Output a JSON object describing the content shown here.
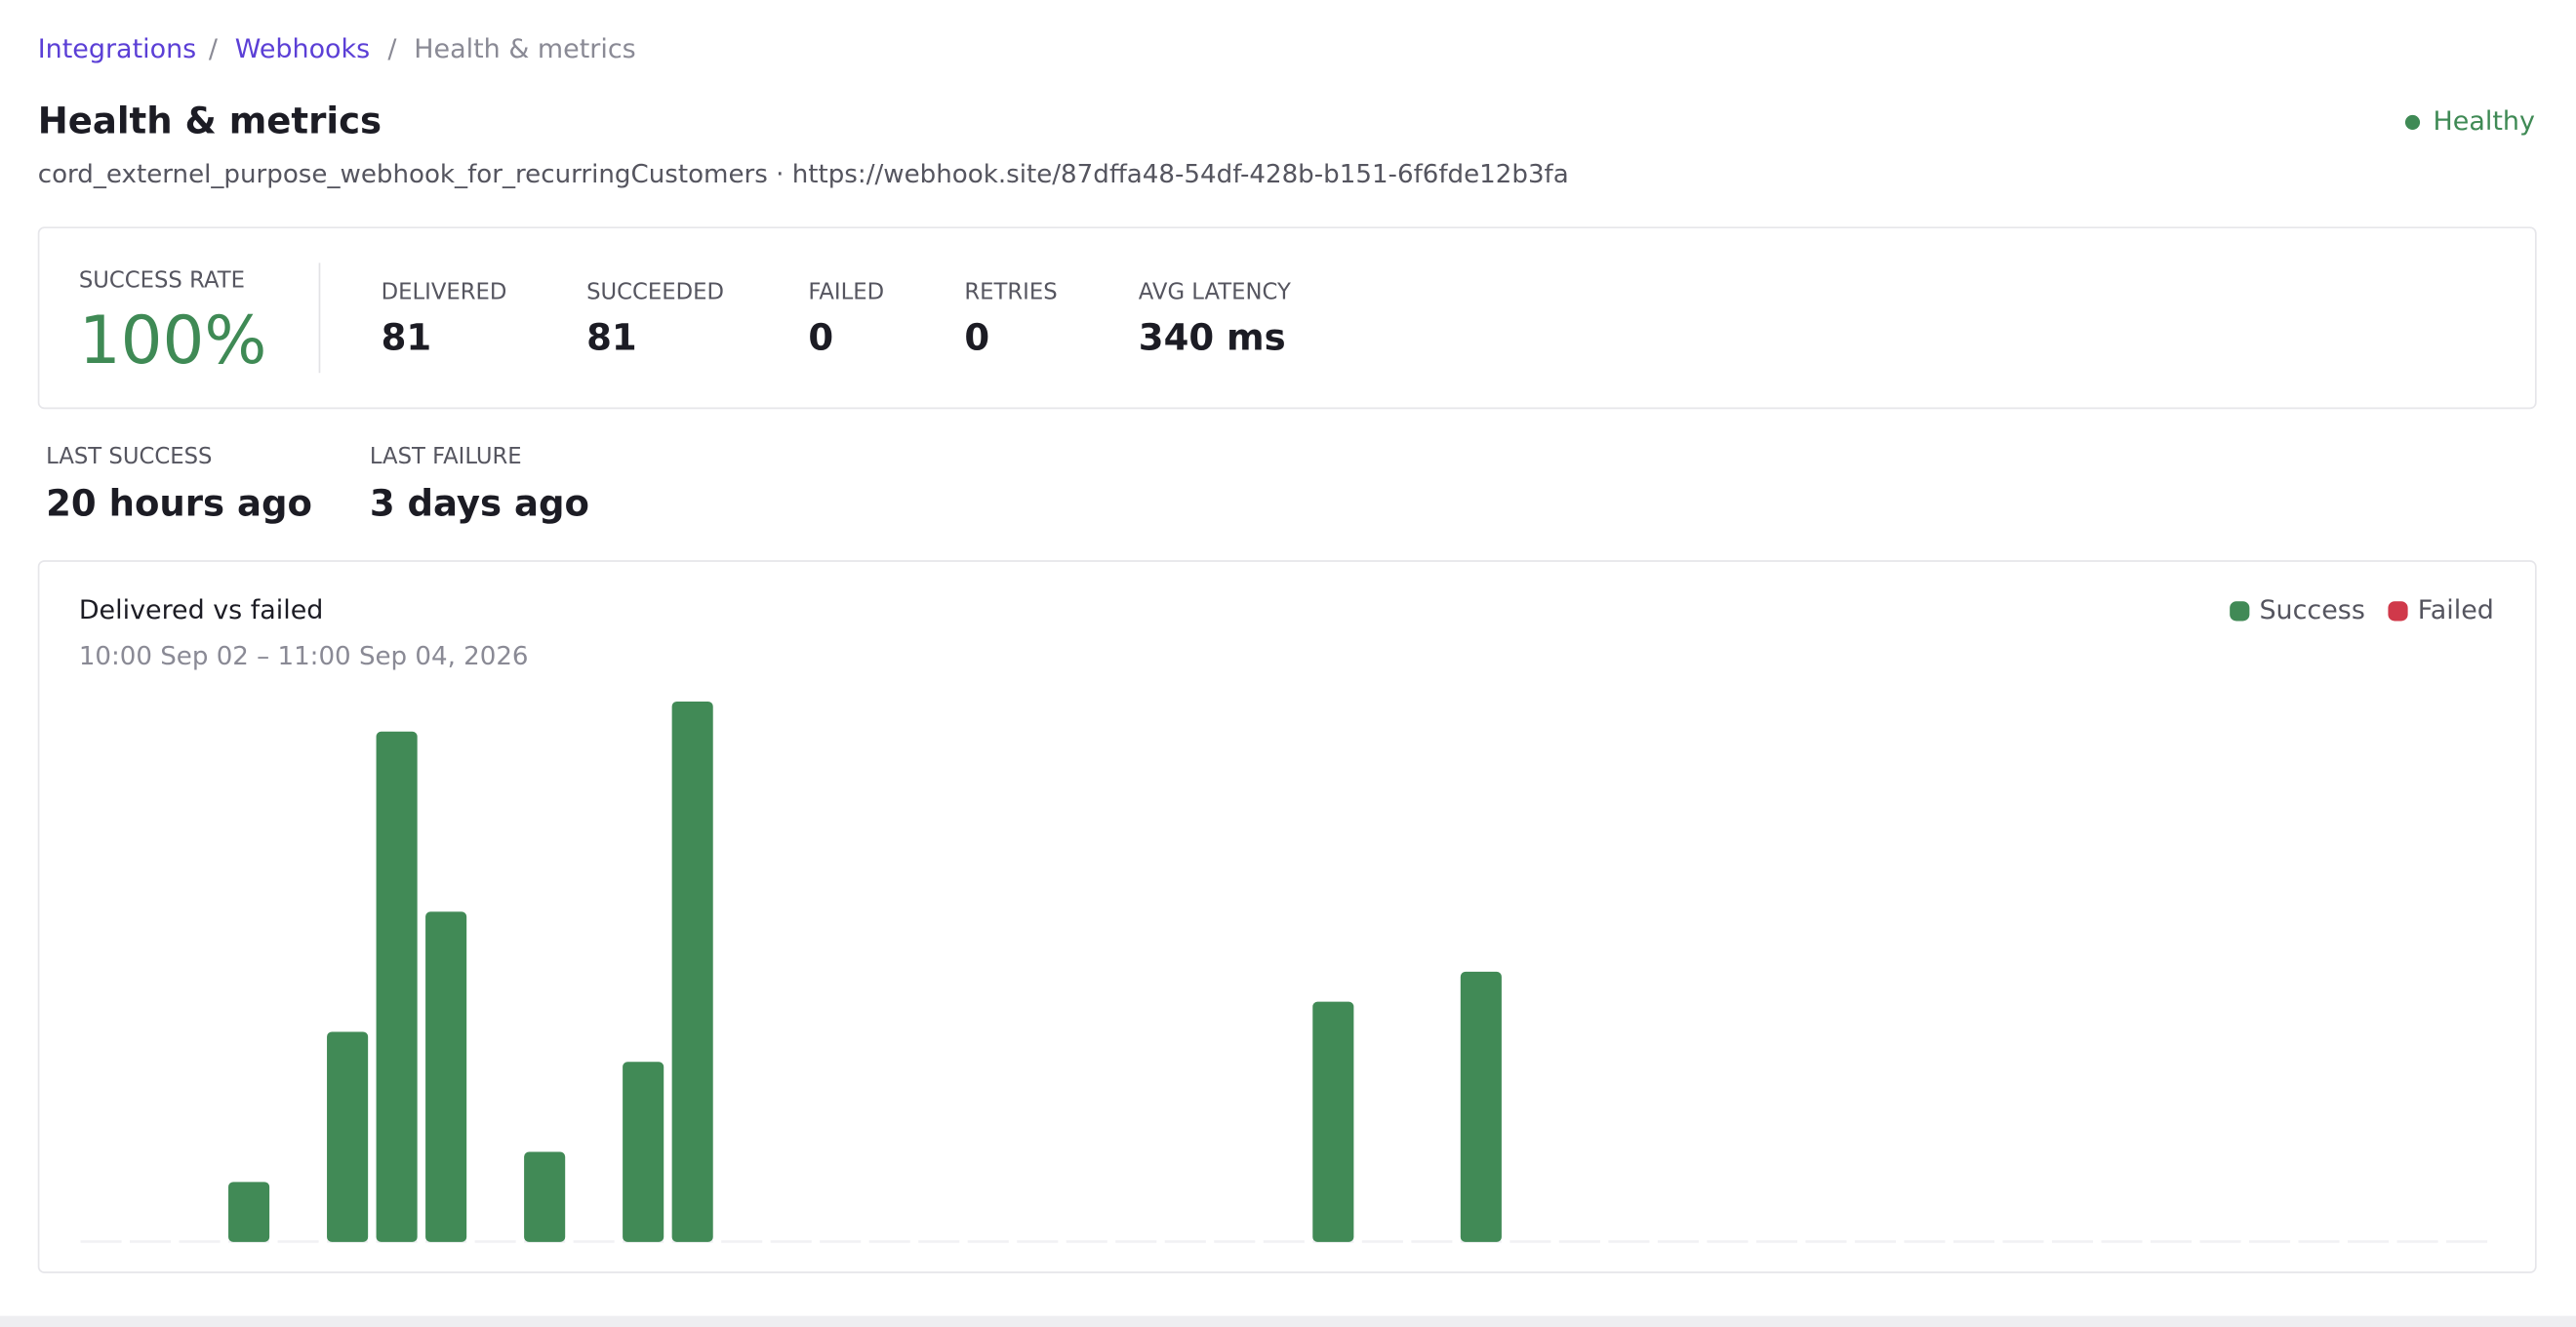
{
  "breadcrumbs": [
    "Integrations",
    "Webhooks",
    "Health & metrics"
  ],
  "breadcrumb_separator": "/",
  "header": {
    "title": "Health & metrics",
    "status": "Healthy",
    "subtitle": "cord_externel_purpose_webhook_for_recurringCustomers · https://webhook.site/87dffa48-54df-428b-b151-6f6fde12b3fa"
  },
  "summary": {
    "success_rate": {
      "label": "SUCCESS RATE",
      "value": "100%"
    },
    "stats": [
      {
        "label": "DELIVERED",
        "value": "81"
      },
      {
        "label": "SUCCEEDED",
        "value": "81"
      },
      {
        "label": "FAILED",
        "value": "0"
      },
      {
        "label": "RETRIES",
        "value": "0"
      },
      {
        "label": "AVG LATENCY",
        "value": "340 ms"
      }
    ]
  },
  "recency": [
    {
      "label": "LAST SUCCESS",
      "value": "20 hours ago"
    },
    {
      "label": "LAST FAILURE",
      "value": "3 days ago"
    }
  ],
  "chart_data": {
    "type": "bar",
    "stacked": true,
    "title": "Delivered vs failed",
    "subtitle": "10:00 Sep 02 – 11:00 Sep 04, 2026",
    "categories": [
      null,
      null,
      null,
      null,
      null,
      null,
      null,
      null,
      null,
      null,
      null,
      null,
      null,
      null,
      null,
      null,
      null,
      null,
      null,
      null,
      null,
      null,
      null,
      null,
      null,
      null,
      null,
      null,
      null,
      null,
      null,
      null,
      null,
      null,
      null,
      null,
      null,
      null,
      null,
      null,
      null,
      null,
      null,
      null,
      null,
      null,
      null,
      null,
      null
    ],
    "series": [
      {
        "name": "Success",
        "color": "#418a56",
        "values": [
          0,
          0,
          0,
          2,
          0,
          7,
          17,
          11,
          0,
          3,
          0,
          6,
          18,
          0,
          0,
          0,
          0,
          0,
          0,
          0,
          0,
          0,
          0,
          0,
          0,
          8,
          0,
          0,
          9,
          0,
          0,
          0,
          0,
          0,
          0,
          0,
          0,
          0,
          0,
          0,
          0,
          0,
          0,
          0,
          0,
          0,
          0,
          0,
          0
        ]
      },
      {
        "name": "Failed",
        "color": "#d0394a",
        "values": [
          0,
          0,
          0,
          0,
          0,
          0,
          0,
          0,
          0,
          0,
          0,
          0,
          0,
          0,
          0,
          0,
          0,
          0,
          0,
          0,
          0,
          0,
          0,
          0,
          0,
          0,
          0,
          0,
          0,
          0,
          0,
          0,
          0,
          0,
          0,
          0,
          0,
          0,
          0,
          0,
          0,
          0,
          0,
          0,
          0,
          0,
          0,
          0,
          0
        ]
      }
    ]
  }
}
